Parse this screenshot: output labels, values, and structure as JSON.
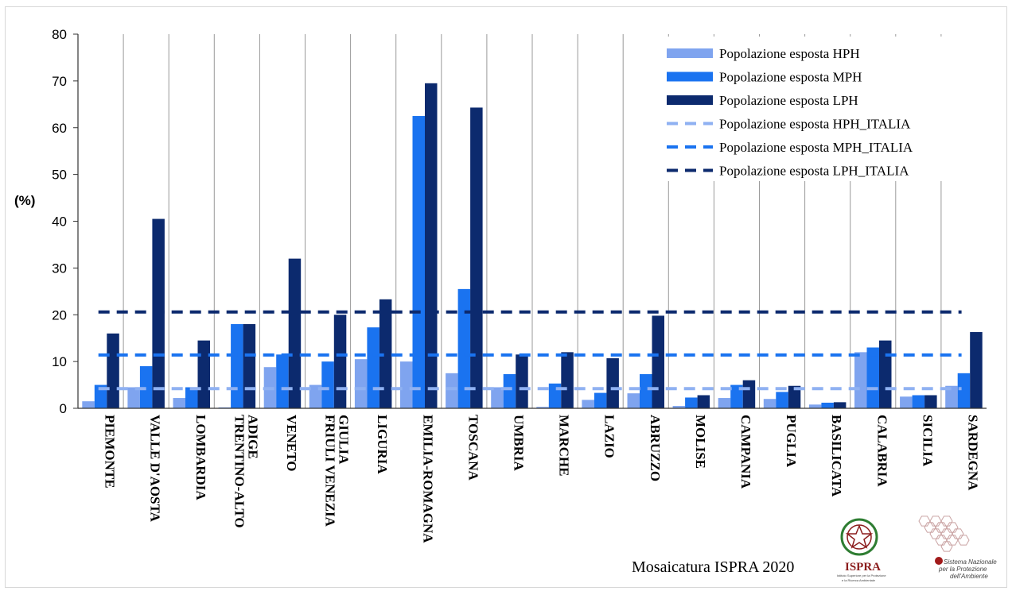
{
  "chart_data": {
    "type": "bar",
    "title": "",
    "xlabel": "",
    "ylabel": "(%)",
    "ylim": [
      0,
      80
    ],
    "yticks": [
      0,
      10,
      20,
      30,
      40,
      50,
      60,
      70,
      80
    ],
    "grid": "vertical category separators",
    "legend_position": "top-right",
    "categories": [
      "PIEMONTE",
      "VALLE D'AOSTA",
      "LOMBARDIA",
      "TRENTINO-ALTO ADIGE",
      "VENETO",
      "FRIULI VENEZIA GIULIA",
      "LIGURIA",
      "EMILIA-ROMAGNA",
      "TOSCANA",
      "UMBRIA",
      "MARCHE",
      "LAZIO",
      "ABRUZZO",
      "MOLISE",
      "CAMPANIA",
      "PUGLIA",
      "BASILICATA",
      "CALABRIA",
      "SICILIA",
      "SARDEGNA"
    ],
    "category_label_lines": [
      [
        "PIEMONTE"
      ],
      [
        "VALLE D'AOSTA"
      ],
      [
        "LOMBARDIA"
      ],
      [
        "TRENTINO-ALTO",
        "ADIGE"
      ],
      [
        "VENETO"
      ],
      [
        "FRIULI VENEZIA",
        "GIULIA"
      ],
      [
        "LIGURIA"
      ],
      [
        "EMILIA-ROMAGNA"
      ],
      [
        "TOSCANA"
      ],
      [
        "UMBRIA"
      ],
      [
        "MARCHE"
      ],
      [
        "LAZIO"
      ],
      [
        "ABRUZZO"
      ],
      [
        "MOLISE"
      ],
      [
        "CAMPANIA"
      ],
      [
        "PUGLIA"
      ],
      [
        "BASILICATA"
      ],
      [
        "CALABRIA"
      ],
      [
        "SICILIA"
      ],
      [
        "SARDEGNA"
      ]
    ],
    "series": [
      {
        "name": "Popolazione esposta HPH",
        "color": "#7fa4ef",
        "values": [
          1.5,
          4.5,
          2.2,
          0.2,
          8.8,
          5.0,
          10.5,
          10.0,
          7.5,
          4.5,
          0.3,
          1.8,
          3.2,
          0.5,
          2.2,
          2.0,
          0.8,
          12.0,
          2.5,
          4.8
        ]
      },
      {
        "name": "Popolazione esposta MPH",
        "color": "#1a73f0",
        "values": [
          5.0,
          9.0,
          4.5,
          18.0,
          11.5,
          10.0,
          17.3,
          62.5,
          25.5,
          7.3,
          5.3,
          3.3,
          7.3,
          2.3,
          5.0,
          3.5,
          1.2,
          13.0,
          2.8,
          7.5
        ]
      },
      {
        "name": "Popolazione esposta LPH",
        "color": "#0c2a6e",
        "values": [
          16.0,
          40.5,
          14.5,
          18.0,
          32.0,
          20.0,
          23.3,
          69.5,
          64.3,
          11.5,
          12.0,
          10.7,
          19.8,
          2.8,
          6.0,
          4.8,
          1.3,
          14.5,
          2.8,
          16.3
        ]
      }
    ],
    "reference_lines": [
      {
        "name": "Popolazione esposta HPH_ITALIA",
        "color": "#8fb1f2",
        "value": 4.2,
        "style": "dashed"
      },
      {
        "name": "Popolazione esposta MPH_ITALIA",
        "color": "#1a73f0",
        "value": 11.4,
        "style": "dashed"
      },
      {
        "name": "Popolazione esposta LPH_ITALIA",
        "color": "#0c2a6e",
        "value": 20.6,
        "style": "dashed"
      }
    ]
  },
  "credit": "Mosaicatura ISPRA  2020",
  "logos": {
    "ispra": {
      "name": "ISPRA",
      "subtitle_line1": "Istituto Superiore per la Protezione",
      "subtitle_line2": "e la Ricerca Ambientale"
    },
    "snpa": {
      "line1": "Sistema Nazionale",
      "line2": "per la Protezione",
      "line3": "dell'Ambiente"
    }
  }
}
